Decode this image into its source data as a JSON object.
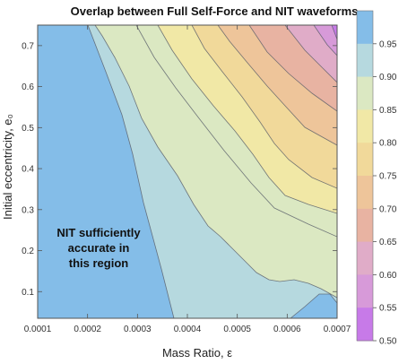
{
  "chart_data": {
    "type": "contour",
    "title": "Overlap between Full Self-Force and NIT waveforms",
    "xlabel": "Mass Ratio, ε",
    "ylabel": "Initial eccentricity, e₀",
    "xlim": [
      0.0001,
      0.0007
    ],
    "ylim": [
      0.035,
      0.75
    ],
    "x_ticks": [
      "0.0001",
      "0.0002",
      "0.0003",
      "0.0004",
      "0.0005",
      "0.0006",
      "0.0007"
    ],
    "y_ticks": [
      "0.1",
      "0.2",
      "0.3",
      "0.4",
      "0.5",
      "0.6",
      "0.7"
    ],
    "colorbar_ticks": [
      "0.95",
      "0.90",
      "0.85",
      "0.80",
      "0.75",
      "0.70",
      "0.65",
      "0.60",
      "0.55",
      "0.50"
    ],
    "contour_levels": [
      0.95,
      0.9,
      0.85,
      0.8,
      0.75,
      0.7,
      0.65,
      0.6,
      0.55
    ],
    "band_colors": [
      "#c77ae8",
      "#d79ad9",
      "#e0acc8",
      "#e8b3a2",
      "#eec59a",
      "#f1d99a",
      "#f1e8a6",
      "#dbe8c2",
      "#b6d9df",
      "#84bde8"
    ],
    "annotation": [
      "NIT sufficiently",
      "accurate in",
      "this region"
    ],
    "grid": false,
    "colorbar_position": "right"
  }
}
